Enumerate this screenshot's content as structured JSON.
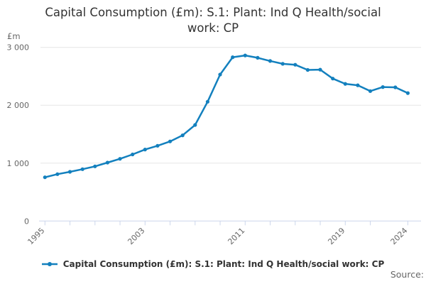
{
  "title": "Capital Consumption (£m): S.1: Plant: Ind Q Health/social work: CP",
  "y_axis_unit_label": "£m",
  "source_label": "Source:",
  "legend": {
    "series_label": "Capital Consumption (£m): S.1: Plant: Ind Q Health/social work: CP",
    "marker": "line-with-dot"
  },
  "colors": {
    "line": "#1380BE",
    "grid": "#e6e6e6",
    "axis": "#ccd6eb",
    "tick_label": "#666666",
    "title": "#333333"
  },
  "chart_data": {
    "type": "line",
    "title": "Capital Consumption (£m): S.1: Plant: Ind Q Health/social work: CP",
    "xlabel": "",
    "ylabel": "£m",
    "ylim": [
      0,
      3000
    ],
    "xlim": [
      1995,
      2024
    ],
    "grid": "horizontal",
    "legend_position": "bottom",
    "marker": "circle",
    "years": [
      1995,
      1996,
      1997,
      1998,
      1999,
      2000,
      2001,
      2002,
      2003,
      2004,
      2005,
      2006,
      2007,
      2008,
      2009,
      2010,
      2011,
      2012,
      2013,
      2014,
      2015,
      2016,
      2017,
      2018,
      2019,
      2020,
      2021,
      2022,
      2023,
      2024
    ],
    "values": [
      755,
      810,
      850,
      895,
      945,
      1010,
      1075,
      1150,
      1235,
      1300,
      1375,
      1480,
      1660,
      2060,
      2530,
      2830,
      2860,
      2820,
      2765,
      2715,
      2700,
      2610,
      2615,
      2460,
      2370,
      2345,
      2245,
      2315,
      2310,
      2210
    ],
    "yticks": [
      {
        "value": 0,
        "label": "0"
      },
      {
        "value": 1000,
        "label": "1 000"
      },
      {
        "value": 2000,
        "label": "2 000"
      },
      {
        "value": 3000,
        "label": "3 000"
      }
    ],
    "xticks": [
      1995,
      1997,
      1999,
      2001,
      2003,
      2005,
      2007,
      2009,
      2011,
      2013,
      2015,
      2017,
      2019,
      2021,
      2024
    ],
    "xtick_labels": [
      {
        "year": 1995,
        "label": "1995"
      },
      {
        "year": 2003,
        "label": "2003"
      },
      {
        "year": 2011,
        "label": "2011"
      },
      {
        "year": 2019,
        "label": "2019"
      },
      {
        "year": 2024,
        "label": "2024"
      }
    ]
  }
}
